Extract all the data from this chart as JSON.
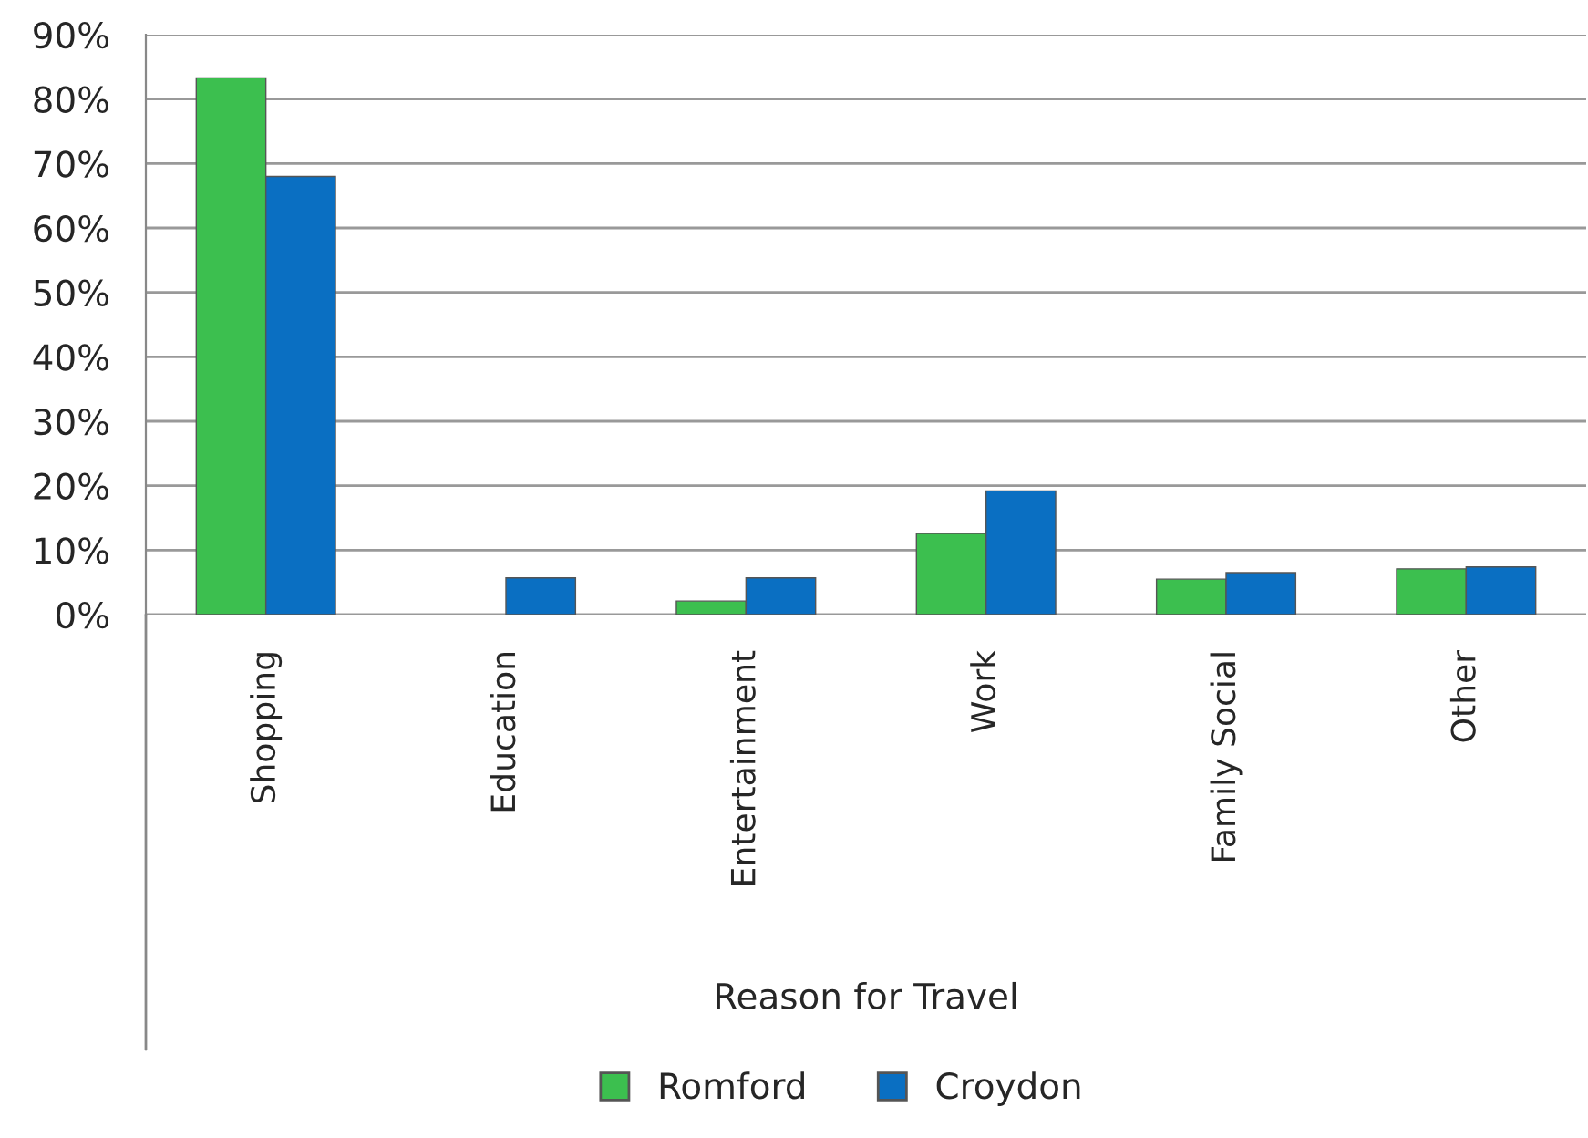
{
  "chart_data": {
    "type": "bar",
    "xlabel": "Reason for Travel",
    "categories": [
      "Shopping",
      "Education",
      "Entertainment",
      "Work",
      "Family Social",
      "Other"
    ],
    "series": [
      {
        "name": "Romford",
        "color": "#3cbf4f",
        "values": [
          83.3,
          null,
          2.1,
          12.6,
          5.5,
          7.1
        ]
      },
      {
        "name": "Croydon",
        "color": "#0a6fc2",
        "values": [
          68,
          5.7,
          5.7,
          19.2,
          6.5,
          7.4
        ]
      }
    ],
    "ylim": [
      0,
      90
    ],
    "yticks": [
      {
        "value": 0,
        "label": "0%"
      },
      {
        "value": 10,
        "label": "10%"
      },
      {
        "value": 20,
        "label": "20%"
      },
      {
        "value": 30,
        "label": "30%"
      },
      {
        "value": 40,
        "label": "40%"
      },
      {
        "value": 50,
        "label": "50%"
      },
      {
        "value": 60,
        "label": "60%"
      },
      {
        "value": 70,
        "label": "70%"
      },
      {
        "value": 80,
        "label": "80%"
      },
      {
        "value": 90,
        "label": "90%"
      }
    ],
    "grid": "y",
    "legend": "bottom"
  }
}
